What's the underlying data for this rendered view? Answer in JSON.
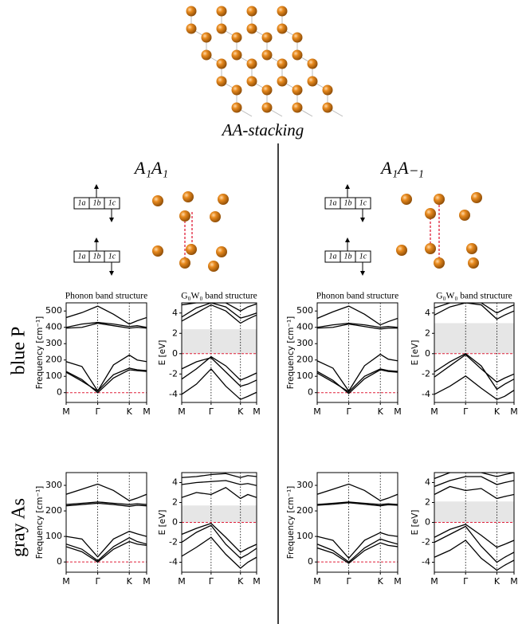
{
  "figure_label": "AA-stacking",
  "columns": [
    "A₁A₁",
    "A₁A₋₁"
  ],
  "rows": [
    "blue P",
    "gray As"
  ],
  "stacking_cells": [
    "1a",
    "1b",
    "1c"
  ],
  "chart_data": [
    {
      "type": "line",
      "title": "Phonon band structure",
      "ylabel": "Frequency [cm⁻¹]",
      "x": [
        0,
        0.5,
        1,
        1.5,
        2,
        2.25,
        2.55
      ],
      "xlim": [
        0,
        2.55
      ],
      "xticks": [
        {
          "value": 0,
          "label": "M"
        },
        {
          "value": 1,
          "label": "Γ"
        },
        {
          "value": 2,
          "label": "K"
        },
        {
          "value": 2.55,
          "label": "M"
        }
      ],
      "ylim": [
        -60,
        550
      ],
      "yticks": [
        0,
        100,
        200,
        300,
        400,
        500
      ],
      "color": "#000000",
      "zero_line": 0,
      "zero_line_color": "#e0203a",
      "series": [
        {
          "values": [
            130,
            80,
            0,
            90,
            140,
            135,
            130
          ]
        },
        {
          "values": [
            125,
            70,
            10,
            110,
            150,
            140,
            135
          ]
        },
        {
          "values": [
            190,
            160,
            10,
            170,
            230,
            200,
            190
          ]
        },
        {
          "values": [
            395,
            400,
            425,
            410,
            395,
            400,
            395
          ]
        },
        {
          "values": [
            460,
            490,
            530,
            480,
            420,
            440,
            460
          ]
        },
        {
          "values": [
            400,
            420,
            430,
            420,
            405,
            410,
            400
          ]
        }
      ]
    },
    {
      "type": "line",
      "title": "G₀W₀ band structure",
      "ylabel": "E [eV]",
      "x": [
        0,
        0.5,
        1,
        1.5,
        2,
        2.25,
        2.55
      ],
      "xlim": [
        0,
        2.55
      ],
      "xticks": [
        {
          "value": 0,
          "label": "M"
        },
        {
          "value": 1,
          "label": "Γ"
        },
        {
          "value": 2,
          "label": "K"
        },
        {
          "value": 2.55,
          "label": "M"
        }
      ],
      "ylim": [
        -4.8,
        5
      ],
      "yticks": [
        -4,
        -2,
        0,
        2,
        4
      ],
      "color": "#000000",
      "zero_line": 0,
      "zero_line_color": "#e0203a",
      "gap": [
        0,
        2.4
      ],
      "gap_color": "#e6e6e6",
      "series": [
        {
          "values": [
            -1.5,
            -0.8,
            -0.4,
            -1.8,
            -3.2,
            -3,
            -2.6
          ]
        },
        {
          "values": [
            -2.5,
            -1.5,
            -0.3,
            -1.2,
            -2.6,
            -2.3,
            -1.9
          ]
        },
        {
          "values": [
            -4,
            -3,
            -1.5,
            -3.2,
            -4.5,
            -4.2,
            -3.8
          ]
        },
        {
          "values": [
            3.6,
            4.5,
            5,
            4.6,
            3.5,
            3.7,
            4
          ]
        },
        {
          "values": [
            3.2,
            4,
            4.8,
            4.2,
            3,
            3.4,
            3.8
          ]
        },
        {
          "values": [
            4.8,
            5,
            5,
            5,
            4.2,
            4.6,
            4.9
          ]
        }
      ]
    },
    {
      "type": "line",
      "title": "Phonon band structure",
      "ylabel": "Frequency [cm⁻¹]",
      "x": [
        0,
        0.5,
        1,
        1.5,
        2,
        2.25,
        2.55
      ],
      "xlim": [
        0,
        2.55
      ],
      "xticks": [
        {
          "value": 0,
          "label": "M"
        },
        {
          "value": 1,
          "label": "Γ"
        },
        {
          "value": 2,
          "label": "K"
        },
        {
          "value": 2.55,
          "label": "M"
        }
      ],
      "ylim": [
        -60,
        550
      ],
      "yticks": [
        0,
        100,
        200,
        300,
        400,
        500
      ],
      "color": "#000000",
      "zero_line": 0,
      "zero_line_color": "#e0203a",
      "series": [
        {
          "values": [
            130,
            75,
            -5,
            85,
            140,
            130,
            125
          ]
        },
        {
          "values": [
            120,
            65,
            5,
            100,
            145,
            135,
            130
          ]
        },
        {
          "values": [
            195,
            150,
            10,
            165,
            235,
            205,
            195
          ]
        },
        {
          "values": [
            395,
            400,
            420,
            405,
            390,
            395,
            395
          ]
        },
        {
          "values": [
            455,
            495,
            530,
            480,
            415,
            435,
            455
          ]
        },
        {
          "values": [
            400,
            415,
            425,
            415,
            400,
            405,
            400
          ]
        }
      ]
    },
    {
      "type": "line",
      "title": "G₀W₀ band structure",
      "ylabel": "E [eV]",
      "x": [
        0,
        0.5,
        1,
        1.5,
        2,
        2.25,
        2.55
      ],
      "xlim": [
        0,
        2.55
      ],
      "xticks": [
        {
          "value": 0,
          "label": "M"
        },
        {
          "value": 1,
          "label": "Γ"
        },
        {
          "value": 2,
          "label": "K"
        },
        {
          "value": 2.55,
          "label": "M"
        }
      ],
      "ylim": [
        -4.8,
        5
      ],
      "yticks": [
        -4,
        -2,
        0,
        2,
        4
      ],
      "color": "#000000",
      "zero_line": 0,
      "zero_line_color": "#e0203a",
      "gap": [
        0,
        3
      ],
      "gap_color": "#e6e6e6",
      "series": [
        {
          "values": [
            -1.8,
            -0.8,
            0,
            -1.2,
            -3.5,
            -3,
            -2.5
          ]
        },
        {
          "values": [
            -2.3,
            -1.2,
            -0.1,
            -1.5,
            -2.8,
            -2.4,
            -2
          ]
        },
        {
          "values": [
            -4,
            -3.2,
            -2.2,
            -3.4,
            -4.5,
            -4.2,
            -3.6
          ]
        },
        {
          "values": [
            3.8,
            4.6,
            5,
            4.8,
            3.4,
            3.8,
            4.2
          ]
        },
        {
          "values": [
            4.5,
            5,
            5,
            5,
            4,
            4.4,
            4.8
          ]
        }
      ]
    },
    {
      "type": "line",
      "ylabel": "Frequency [cm⁻¹]",
      "x": [
        0,
        0.5,
        1,
        1.5,
        2,
        2.25,
        2.55
      ],
      "xlim": [
        0,
        2.55
      ],
      "xticks": [
        {
          "value": 0,
          "label": "M"
        },
        {
          "value": 1,
          "label": "Γ"
        },
        {
          "value": 2,
          "label": "K"
        },
        {
          "value": 2.55,
          "label": "M"
        }
      ],
      "ylim": [
        -40,
        350
      ],
      "yticks": [
        0,
        100,
        200,
        300
      ],
      "color": "#000000",
      "zero_line": 0,
      "zero_line_color": "#e0203a",
      "series": [
        {
          "values": [
            60,
            40,
            0,
            50,
            80,
            70,
            65
          ]
        },
        {
          "values": [
            70,
            50,
            5,
            60,
            95,
            80,
            70
          ]
        },
        {
          "values": [
            100,
            90,
            20,
            90,
            120,
            110,
            100
          ]
        },
        {
          "values": [
            225,
            230,
            235,
            230,
            225,
            228,
            225
          ]
        },
        {
          "values": [
            265,
            285,
            305,
            280,
            240,
            250,
            265
          ]
        },
        {
          "values": [
            220,
            225,
            230,
            225,
            218,
            222,
            220
          ]
        }
      ]
    },
    {
      "type": "line",
      "ylabel": "E [eV]",
      "x": [
        0,
        0.5,
        1,
        1.5,
        2,
        2.25,
        2.55
      ],
      "xlim": [
        0,
        2.55
      ],
      "xticks": [
        {
          "value": 0,
          "label": "M"
        },
        {
          "value": 1,
          "label": "Γ"
        },
        {
          "value": 2,
          "label": "K"
        },
        {
          "value": 2.55,
          "label": "M"
        }
      ],
      "ylim": [
        -5,
        5
      ],
      "yticks": [
        -4,
        -2,
        0,
        2,
        4
      ],
      "color": "#000000",
      "zero_line": 0,
      "zero_line_color": "#e0203a",
      "gap": [
        0,
        1.7
      ],
      "gap_color": "#e6e6e6",
      "series": [
        {
          "values": [
            -1.2,
            -0.6,
            -0.1,
            -1.5,
            -3,
            -2.6,
            -2.2
          ]
        },
        {
          "values": [
            -2,
            -1,
            -0.3,
            -2.2,
            -3.6,
            -3.2,
            -2.6
          ]
        },
        {
          "values": [
            -3.4,
            -2.5,
            -1.5,
            -3.2,
            -4.6,
            -4,
            -3.5
          ]
        },
        {
          "values": [
            2.5,
            3,
            2.8,
            3.5,
            2.4,
            2.8,
            2.5
          ]
        },
        {
          "values": [
            3.8,
            4,
            4.1,
            4.2,
            3.8,
            3.9,
            3.7
          ]
        },
        {
          "values": [
            4.5,
            4.6,
            4.8,
            4.9,
            4.5,
            4.7,
            4.6
          ]
        }
      ]
    },
    {
      "type": "line",
      "ylabel": "Frequency [cm⁻¹]",
      "x": [
        0,
        0.5,
        1,
        1.5,
        2,
        2.25,
        2.55
      ],
      "xlim": [
        0,
        2.55
      ],
      "xticks": [
        {
          "value": 0,
          "label": "M"
        },
        {
          "value": 1,
          "label": "Γ"
        },
        {
          "value": 2,
          "label": "K"
        },
        {
          "value": 2.55,
          "label": "M"
        }
      ],
      "ylim": [
        -40,
        350
      ],
      "yticks": [
        0,
        100,
        200,
        300
      ],
      "color": "#000000",
      "zero_line": 0,
      "zero_line_color": "#e0203a",
      "series": [
        {
          "values": [
            55,
            35,
            -5,
            45,
            75,
            65,
            60
          ]
        },
        {
          "values": [
            70,
            45,
            0,
            55,
            90,
            80,
            70
          ]
        },
        {
          "values": [
            100,
            85,
            15,
            85,
            115,
            105,
            100
          ]
        },
        {
          "values": [
            225,
            230,
            235,
            230,
            225,
            228,
            225
          ]
        },
        {
          "values": [
            265,
            285,
            305,
            280,
            240,
            250,
            265
          ]
        },
        {
          "values": [
            222,
            226,
            232,
            226,
            220,
            224,
            222
          ]
        }
      ]
    },
    {
      "type": "line",
      "ylabel": "E [eV]",
      "x": [
        0,
        0.5,
        1,
        1.5,
        2,
        2.25,
        2.55
      ],
      "xlim": [
        0,
        2.55
      ],
      "xticks": [
        {
          "value": 0,
          "label": "M"
        },
        {
          "value": 1,
          "label": "Γ"
        },
        {
          "value": 2,
          "label": "K"
        },
        {
          "value": 2.55,
          "label": "M"
        }
      ],
      "ylim": [
        -5,
        5
      ],
      "yticks": [
        -4,
        -2,
        0,
        2,
        4
      ],
      "color": "#000000",
      "zero_line": 0,
      "zero_line_color": "#e0203a",
      "gap": [
        0,
        2.1
      ],
      "gap_color": "#e6e6e6",
      "series": [
        {
          "values": [
            -1.5,
            -0.7,
            -0.2,
            -1.3,
            -2.5,
            -2.2,
            -1.8
          ]
        },
        {
          "values": [
            -2,
            -1.2,
            -0.4,
            -2.4,
            -4,
            -3.5,
            -3
          ]
        },
        {
          "values": [
            -3.5,
            -2.8,
            -1.8,
            -3.6,
            -4.8,
            -4.3,
            -3.8
          ]
        },
        {
          "values": [
            2.8,
            3.6,
            3.2,
            3.4,
            2.4,
            2.6,
            2.8
          ]
        },
        {
          "values": [
            3.6,
            4.2,
            4.6,
            4.6,
            3.8,
            4,
            4.2
          ]
        },
        {
          "values": [
            4.4,
            5,
            5,
            5,
            4.6,
            4.8,
            5
          ]
        }
      ]
    }
  ]
}
